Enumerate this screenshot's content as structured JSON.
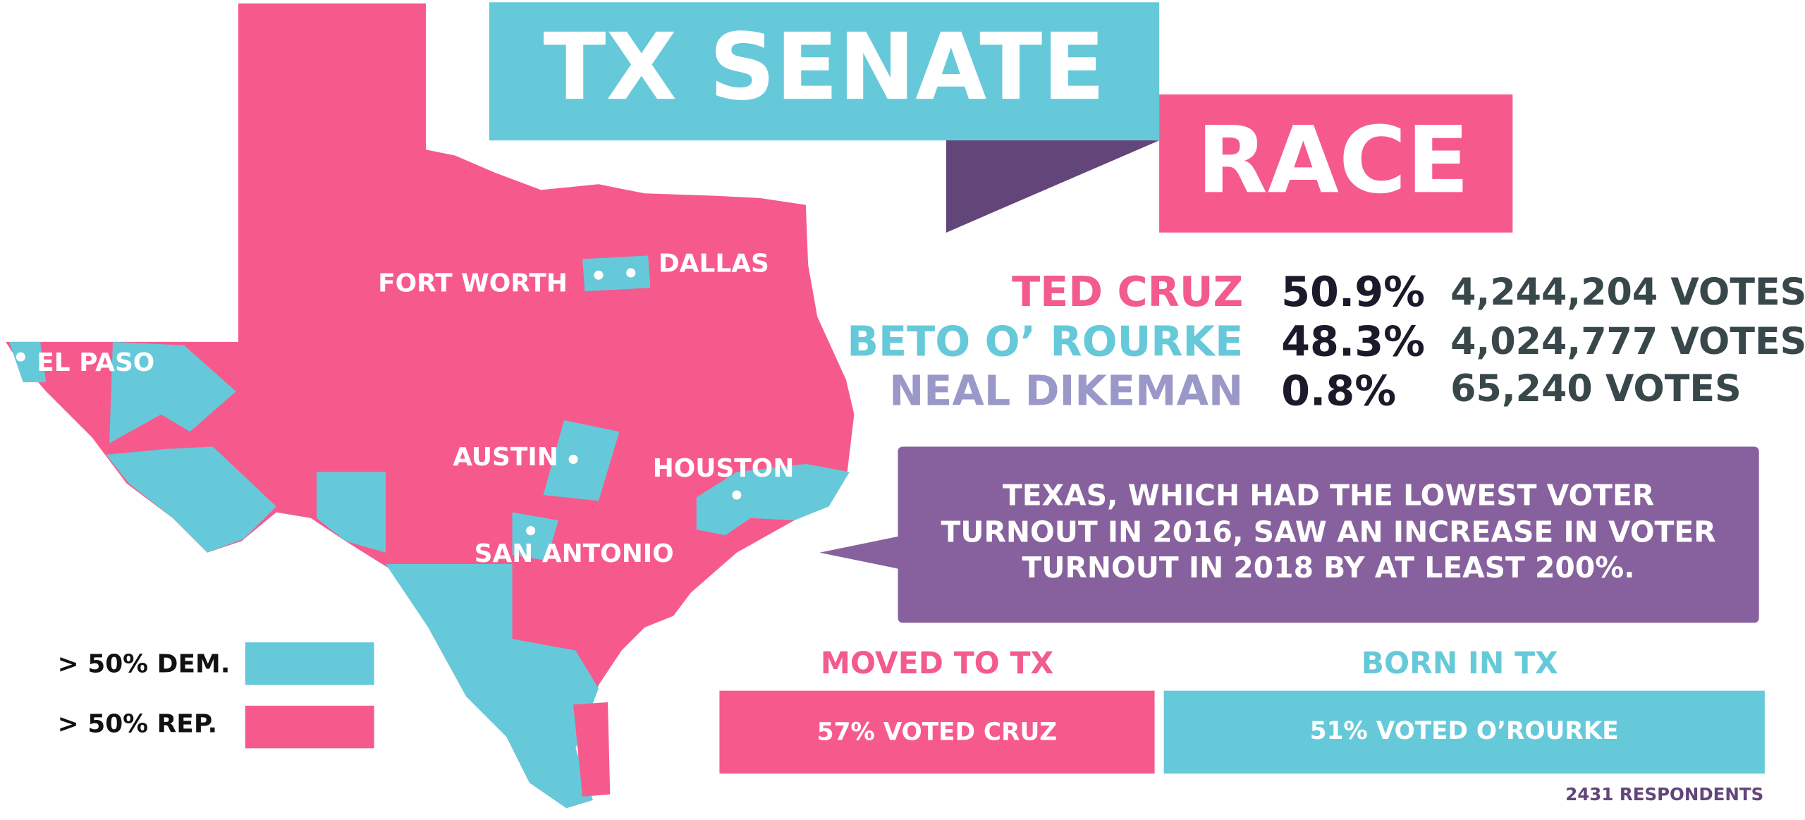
{
  "title": {
    "line1": "TX SENATE",
    "line2": "RACE"
  },
  "candidates": [
    {
      "name": "TED CRUZ",
      "percent": "50.9%",
      "votes": "4,244,204 VOTES"
    },
    {
      "name": "BETO O’ ROURKE",
      "percent": "48.3%",
      "votes": "4,024,777 VOTES"
    },
    {
      "name": "NEAL DIKEMAN",
      "percent": "0.8%",
      "votes": "65,240 VOTES"
    }
  ],
  "callout": [
    "TEXAS, WHICH HAD THE LOWEST VOTER",
    "TURNOUT IN 2016, SAW AN INCREASE IN VOTER",
    "TURNOUT IN 2018 BY AT LEAST 200%."
  ],
  "map": {
    "cities": [
      "FORT WORTH",
      "DALLAS",
      "EL PASO",
      "AUSTIN",
      "HOUSTON",
      "SAN ANTONIO"
    ]
  },
  "legend": [
    "> 50% DEM.",
    "> 50% REP."
  ],
  "groups": [
    {
      "heading": "MOVED TO TX",
      "result": "57% VOTED CRUZ"
    },
    {
      "heading": "BORN IN TX",
      "result": "51% VOTED O’ROURKE"
    }
  ],
  "footnote": "2431 RESPONDENTS"
}
